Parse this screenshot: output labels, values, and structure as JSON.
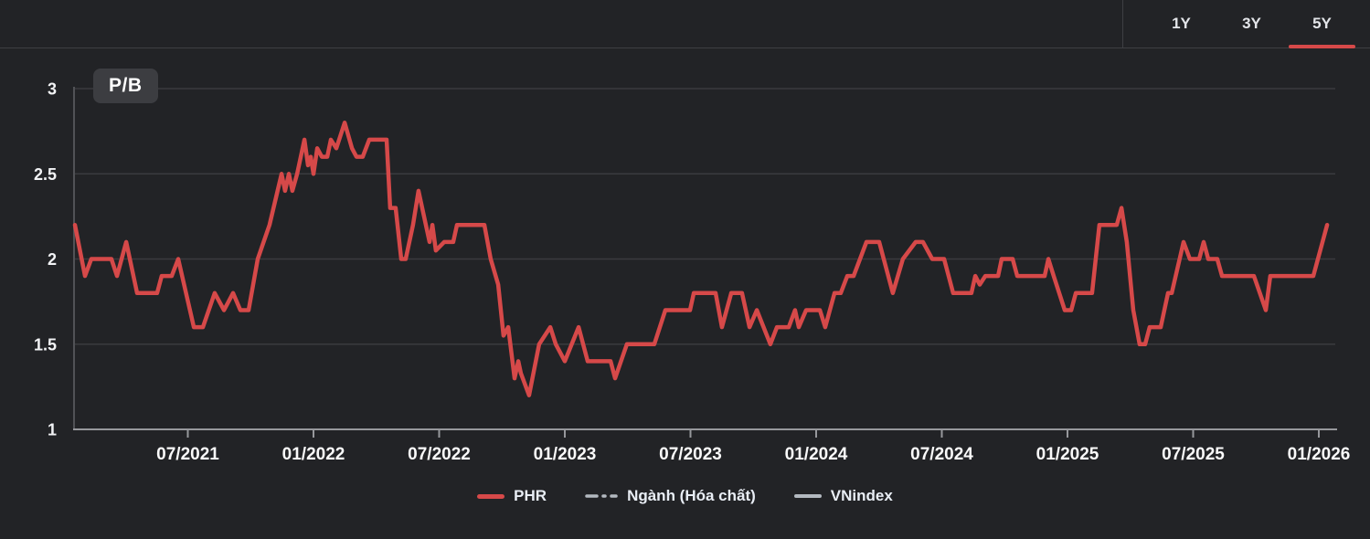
{
  "header": {
    "tabs": [
      {
        "label": "1Y",
        "active": false
      },
      {
        "label": "3Y",
        "active": false
      },
      {
        "label": "5Y",
        "active": true
      }
    ]
  },
  "chart": {
    "metric_label": "P/B"
  },
  "legend": {
    "items": [
      {
        "label": "PHR",
        "swatch": "solid",
        "color": "#d64949"
      },
      {
        "label": "Ngành (Hóa chất)",
        "swatch": "dash-dot",
        "color": "#b3b9c0"
      },
      {
        "label": "VNindex",
        "swatch": "solid",
        "color": "#b3b9c0"
      }
    ]
  },
  "colors": {
    "accent_red": "#d64949",
    "background": "#222326",
    "gridline": "#3a3b3f",
    "axis": "#97989c",
    "text": "#f2f3f5"
  },
  "chart_data": {
    "type": "line",
    "title": "P/B",
    "ylabel": "P/B",
    "xlabel": "",
    "ylim": [
      1,
      3
    ],
    "grid": true,
    "legend_position": "bottom",
    "yticks": [
      {
        "label": "3",
        "v": 3
      },
      {
        "label": "2.5",
        "v": 2.5
      },
      {
        "label": "2",
        "v": 2
      },
      {
        "label": "1.5",
        "v": 1.5
      },
      {
        "label": "1",
        "v": 1
      }
    ],
    "xticks": [
      {
        "label": "07/2021",
        "t": 2021.5
      },
      {
        "label": "01/2022",
        "t": 2022.0
      },
      {
        "label": "07/2022",
        "t": 2022.5
      },
      {
        "label": "01/2023",
        "t": 2023.0
      },
      {
        "label": "07/2023",
        "t": 2023.5
      },
      {
        "label": "01/2024",
        "t": 2024.0
      },
      {
        "label": "07/2024",
        "t": 2024.5
      },
      {
        "label": "01/2025",
        "t": 2025.0
      },
      {
        "label": "07/2025",
        "t": 2025.5
      },
      {
        "label": "01/2026",
        "t": 2026.0
      }
    ],
    "series": [
      {
        "name": "PHR",
        "color": "#d64949",
        "style": "solid",
        "points": [
          [
            2021.051,
            2.2
          ],
          [
            2021.091,
            1.9
          ],
          [
            2021.116,
            2.0
          ],
          [
            2021.196,
            2.0
          ],
          [
            2021.218,
            1.9
          ],
          [
            2021.255,
            2.1
          ],
          [
            2021.298,
            1.8
          ],
          [
            2021.378,
            1.8
          ],
          [
            2021.396,
            1.9
          ],
          [
            2021.436,
            1.9
          ],
          [
            2021.462,
            2.0
          ],
          [
            2021.524,
            1.6
          ],
          [
            2021.56,
            1.6
          ],
          [
            2021.607,
            1.8
          ],
          [
            2021.644,
            1.7
          ],
          [
            2021.68,
            1.8
          ],
          [
            2021.709,
            1.7
          ],
          [
            2021.742,
            1.7
          ],
          [
            2021.778,
            2.0
          ],
          [
            2021.825,
            2.2
          ],
          [
            2021.873,
            2.5
          ],
          [
            2021.887,
            2.4
          ],
          [
            2021.902,
            2.5
          ],
          [
            2021.916,
            2.4
          ],
          [
            2021.935,
            2.5
          ],
          [
            2021.964,
            2.7
          ],
          [
            2021.978,
            2.55
          ],
          [
            2021.989,
            2.6
          ],
          [
            2022.0,
            2.5
          ],
          [
            2022.015,
            2.65
          ],
          [
            2022.033,
            2.6
          ],
          [
            2022.055,
            2.6
          ],
          [
            2022.069,
            2.7
          ],
          [
            2022.091,
            2.65
          ],
          [
            2022.124,
            2.8
          ],
          [
            2022.153,
            2.65
          ],
          [
            2022.171,
            2.6
          ],
          [
            2022.196,
            2.6
          ],
          [
            2022.222,
            2.7
          ],
          [
            2022.291,
            2.7
          ],
          [
            2022.305,
            2.3
          ],
          [
            2022.327,
            2.3
          ],
          [
            2022.349,
            2.0
          ],
          [
            2022.367,
            2.0
          ],
          [
            2022.396,
            2.2
          ],
          [
            2022.418,
            2.4
          ],
          [
            2022.462,
            2.1
          ],
          [
            2022.473,
            2.2
          ],
          [
            2022.487,
            2.05
          ],
          [
            2022.52,
            2.1
          ],
          [
            2022.556,
            2.1
          ],
          [
            2022.571,
            2.2
          ],
          [
            2022.68,
            2.2
          ],
          [
            2022.705,
            2.0
          ],
          [
            2022.735,
            1.85
          ],
          [
            2022.756,
            1.55
          ],
          [
            2022.775,
            1.6
          ],
          [
            2022.8,
            1.3
          ],
          [
            2022.815,
            1.4
          ],
          [
            2022.825,
            1.33
          ],
          [
            2022.858,
            1.2
          ],
          [
            2022.898,
            1.5
          ],
          [
            2022.942,
            1.6
          ],
          [
            2022.964,
            1.5
          ],
          [
            2023.0,
            1.4
          ],
          [
            2023.055,
            1.6
          ],
          [
            2023.091,
            1.4
          ],
          [
            2023.182,
            1.4
          ],
          [
            2023.2,
            1.3
          ],
          [
            2023.247,
            1.5
          ],
          [
            2023.356,
            1.5
          ],
          [
            2023.4,
            1.7
          ],
          [
            2023.498,
            1.7
          ],
          [
            2023.513,
            1.8
          ],
          [
            2023.6,
            1.8
          ],
          [
            2023.625,
            1.6
          ],
          [
            2023.662,
            1.8
          ],
          [
            2023.705,
            1.8
          ],
          [
            2023.735,
            1.6
          ],
          [
            2023.764,
            1.7
          ],
          [
            2023.818,
            1.5
          ],
          [
            2023.844,
            1.6
          ],
          [
            2023.891,
            1.6
          ],
          [
            2023.916,
            1.7
          ],
          [
            2023.931,
            1.6
          ],
          [
            2023.96,
            1.7
          ],
          [
            2024.015,
            1.7
          ],
          [
            2024.036,
            1.6
          ],
          [
            2024.073,
            1.8
          ],
          [
            2024.098,
            1.8
          ],
          [
            2024.124,
            1.9
          ],
          [
            2024.149,
            1.9
          ],
          [
            2024.2,
            2.1
          ],
          [
            2024.251,
            2.1
          ],
          [
            2024.305,
            1.8
          ],
          [
            2024.345,
            2.0
          ],
          [
            2024.396,
            2.1
          ],
          [
            2024.425,
            2.1
          ],
          [
            2024.462,
            2.0
          ],
          [
            2024.509,
            2.0
          ],
          [
            2024.545,
            1.8
          ],
          [
            2024.618,
            1.8
          ],
          [
            2024.633,
            1.9
          ],
          [
            2024.651,
            1.85
          ],
          [
            2024.673,
            1.9
          ],
          [
            2024.724,
            1.9
          ],
          [
            2024.738,
            2.0
          ],
          [
            2024.782,
            2.0
          ],
          [
            2024.8,
            1.9
          ],
          [
            2024.909,
            1.9
          ],
          [
            2024.924,
            2.0
          ],
          [
            2024.945,
            1.9
          ],
          [
            2024.989,
            1.7
          ],
          [
            2025.015,
            1.7
          ],
          [
            2025.033,
            1.8
          ],
          [
            2025.098,
            1.8
          ],
          [
            2025.127,
            2.2
          ],
          [
            2025.196,
            2.2
          ],
          [
            2025.215,
            2.3
          ],
          [
            2025.236,
            2.1
          ],
          [
            2025.262,
            1.7
          ],
          [
            2025.287,
            1.5
          ],
          [
            2025.309,
            1.5
          ],
          [
            2025.327,
            1.6
          ],
          [
            2025.371,
            1.6
          ],
          [
            2025.4,
            1.8
          ],
          [
            2025.415,
            1.8
          ],
          [
            2025.462,
            2.1
          ],
          [
            2025.487,
            2.0
          ],
          [
            2025.524,
            2.0
          ],
          [
            2025.542,
            2.1
          ],
          [
            2025.56,
            2.0
          ],
          [
            2025.596,
            2.0
          ],
          [
            2025.615,
            1.9
          ],
          [
            2025.742,
            1.9
          ],
          [
            2025.789,
            1.7
          ],
          [
            2025.807,
            1.9
          ],
          [
            2025.978,
            1.9
          ],
          [
            2026.033,
            2.2
          ]
        ]
      },
      {
        "name": "Ngành (Hóa chất)",
        "color": "#b3b9c0",
        "style": "dash-dot",
        "points": []
      },
      {
        "name": "VNindex",
        "color": "#b3b9c0",
        "style": "solid",
        "points": []
      }
    ]
  }
}
